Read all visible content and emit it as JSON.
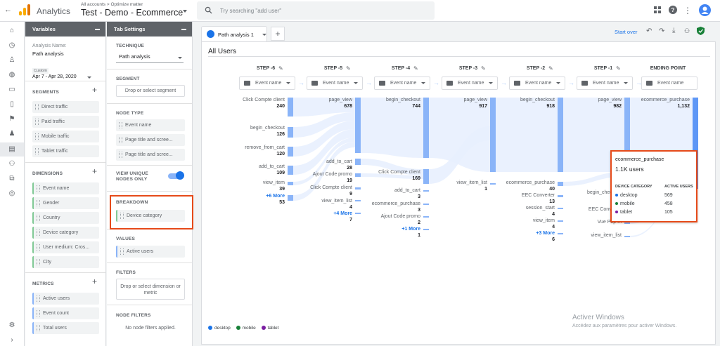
{
  "app": {
    "title": "Analytics",
    "breadcrumb": "All accounts > Optimize matter",
    "property": "Test - Demo - Ecommerce",
    "search_placeholder": "Try searching \"add user\""
  },
  "variables": {
    "header": "Variables",
    "analysis_name_label": "Analysis Name:",
    "analysis_name": "Path analysis",
    "date_custom": "Custom",
    "date_range": "Apr 7 - Apr 28, 2020",
    "segments_title": "SEGMENTS",
    "segments": [
      "Direct traffic",
      "Paid traffic",
      "Mobile traffic",
      "Tablet traffic"
    ],
    "dimensions_title": "DIMENSIONS",
    "dimensions": [
      "Event name",
      "Gender",
      "Country",
      "Device category",
      "User medium: Cros...",
      "City"
    ],
    "metrics_title": "METRICS",
    "metrics": [
      "Active users",
      "Event count",
      "Total users"
    ]
  },
  "tab_settings": {
    "header": "Tab Settings",
    "technique_label": "TECHNIQUE",
    "technique": "Path analysis",
    "segment_label": "SEGMENT",
    "segment_drop": "Drop or select segment",
    "node_type_label": "NODE TYPE",
    "node_types": [
      "Event name",
      "Page title and scree...",
      "Page title and scree..."
    ],
    "unique_nodes_label": "VIEW UNIQUE NODES ONLY",
    "breakdown_label": "BREAKDOWN",
    "breakdown": "Device category",
    "values_label": "VALUES",
    "values": "Active users",
    "filters_label": "FILTERS",
    "filters_drop": "Drop or select dimension or metric",
    "node_filters_label": "NODE FILTERS",
    "node_filters_text": "No node filters applied."
  },
  "canvas": {
    "tab_label": "Path analysis 1",
    "start_over": "Start over",
    "section_title": "All Users",
    "steps": [
      {
        "header": "STEP -6",
        "selector": "Event name"
      },
      {
        "header": "STEP -5",
        "selector": "Event name"
      },
      {
        "header": "STEP -4",
        "selector": "Event name"
      },
      {
        "header": "STEP -3",
        "selector": "Event name"
      },
      {
        "header": "STEP -2",
        "selector": "Event name"
      },
      {
        "header": "STEP -1",
        "selector": "Event name"
      },
      {
        "header": "ENDING POINT",
        "selector": "Event name"
      }
    ],
    "col_minus6": [
      {
        "label": "Click Compte client",
        "value": "240"
      },
      {
        "label": "begin_checkout",
        "value": "126"
      },
      {
        "label": "remove_from_cart",
        "value": "120"
      },
      {
        "label": "add_to_cart",
        "value": "109"
      },
      {
        "label": "view_item",
        "value": "39"
      },
      {
        "label": "+6 More",
        "value": "53"
      }
    ],
    "col_minus5": [
      {
        "label": "page_view",
        "value": "678"
      },
      {
        "label": "add_to_cart",
        "value": "28"
      },
      {
        "label": "Ajout Code promo",
        "value": "19"
      },
      {
        "label": "Click Compte client",
        "value": "9"
      },
      {
        "label": "view_item_list",
        "value": "4"
      },
      {
        "label": "+4 More",
        "value": "7"
      }
    ],
    "col_minus4": [
      {
        "label": "begin_checkout",
        "value": "744"
      },
      {
        "label": "Click Compte client",
        "value": "169"
      },
      {
        "label": "add_to_cart",
        "value": "3"
      },
      {
        "label": "ecommerce_purchase",
        "value": "3"
      },
      {
        "label": "Ajout Code promo",
        "value": "2"
      },
      {
        "label": "+1 More",
        "value": "1"
      }
    ],
    "col_minus3": [
      {
        "label": "page_view",
        "value": "917"
      },
      {
        "label": "view_item_list",
        "value": "1"
      }
    ],
    "col_minus2": [
      {
        "label": "begin_checkout",
        "value": "918"
      },
      {
        "label": "ecommerce_purchase",
        "value": "40"
      },
      {
        "label": "EEC Converter",
        "value": "13"
      },
      {
        "label": "session_start",
        "value": "4"
      },
      {
        "label": "view_item",
        "value": "4"
      },
      {
        "label": "+3 More",
        "value": "6"
      }
    ],
    "col_minus1": [
      {
        "label": "page_view",
        "value": "982"
      },
      {
        "label": "begin_checkout",
        "value": ""
      },
      {
        "label": "EEC Converter",
        "value": ""
      },
      {
        "label": "Vue Pop In",
        "value": ""
      },
      {
        "label": "view_item_list",
        "value": ""
      }
    ],
    "col_end": [
      {
        "label": "ecommerce_purchase",
        "value": "1,132"
      }
    ],
    "legend": [
      "desktop",
      "mobile",
      "tablet"
    ],
    "legend_colors": [
      "#1a73e8",
      "#188038",
      "#7b1fa2"
    ],
    "watermark_title": "Activer Windows",
    "watermark_sub": "Accédez aux paramètres pour activer Windows."
  },
  "tooltip": {
    "title": "ecommerce_purchase",
    "users": "1.1K users",
    "col1": "DEVICE CATEGORY",
    "col2": "ACTIVE USERS",
    "rows": [
      {
        "name": "desktop",
        "value": "569",
        "color": "#1a73e8"
      },
      {
        "name": "mobile",
        "value": "458",
        "color": "#188038"
      },
      {
        "name": "tablet",
        "value": "105",
        "color": "#7b1fa2"
      }
    ]
  },
  "colors": {
    "accent": "#1a73e8",
    "flow": "#8ab4f8",
    "highlight": "#e64a19"
  }
}
